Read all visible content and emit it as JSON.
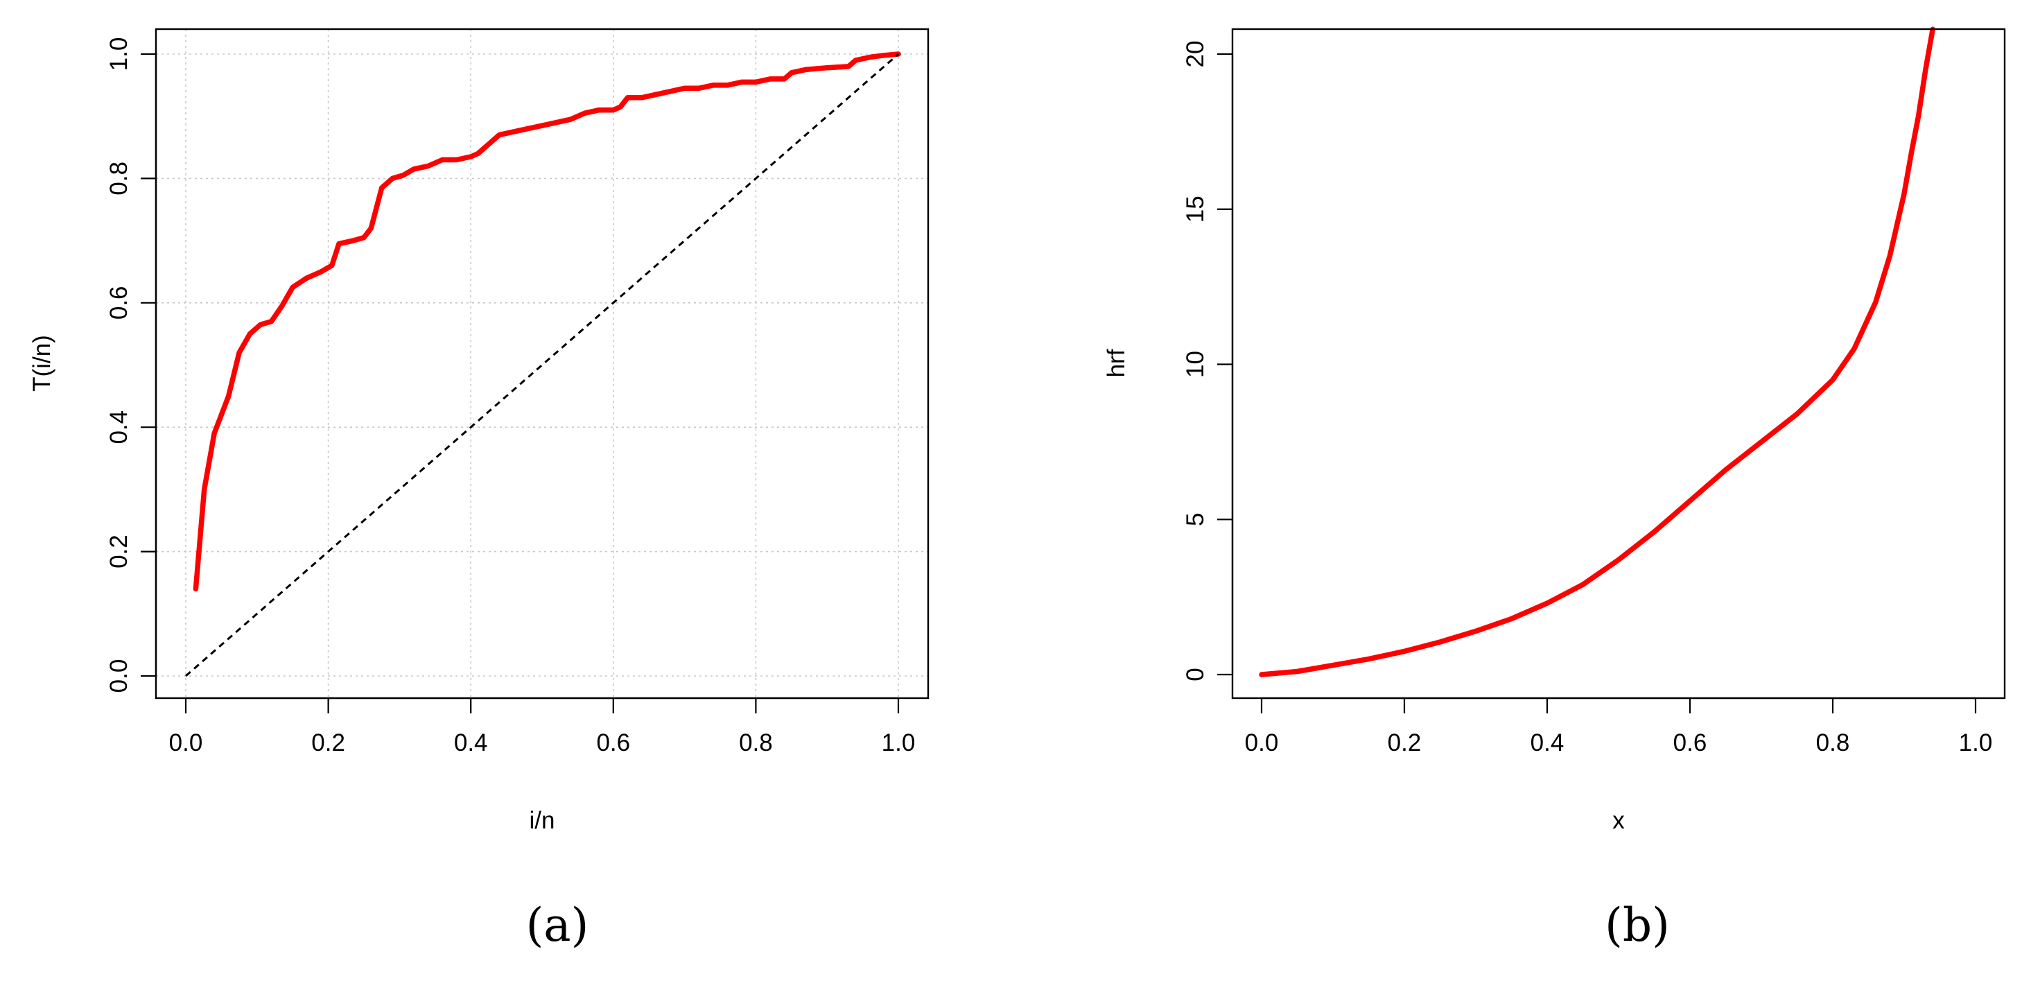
{
  "colors": {
    "curve": "#ff0000",
    "reference_line": "#000000",
    "grid": "#c8c8c8"
  },
  "panels": [
    {
      "label": "(a)"
    },
    {
      "label": "(b)"
    }
  ],
  "chart_data": [
    {
      "type": "line",
      "xlabel": "i/n",
      "ylabel": "T(i/n)",
      "xlim": [
        0,
        1
      ],
      "ylim": [
        0,
        1
      ],
      "x_ticks": [
        "0.0",
        "0.2",
        "0.4",
        "0.6",
        "0.8",
        "1.0"
      ],
      "y_ticks": [
        "0.0",
        "0.2",
        "0.4",
        "0.6",
        "0.8",
        "1.0"
      ],
      "grid": true,
      "series": [
        {
          "style": "solid-red",
          "x": [
            0.014,
            0.026,
            0.04,
            0.06,
            0.075,
            0.09,
            0.105,
            0.12,
            0.135,
            0.15,
            0.17,
            0.19,
            0.205,
            0.215,
            0.235,
            0.25,
            0.26,
            0.275,
            0.29,
            0.305,
            0.32,
            0.34,
            0.36,
            0.38,
            0.4,
            0.41,
            0.43,
            0.44,
            0.46,
            0.48,
            0.5,
            0.52,
            0.54,
            0.55,
            0.56,
            0.58,
            0.6,
            0.61,
            0.62,
            0.64,
            0.66,
            0.68,
            0.7,
            0.72,
            0.74,
            0.76,
            0.78,
            0.8,
            0.82,
            0.84,
            0.85,
            0.87,
            0.9,
            0.93,
            0.94,
            0.96,
            0.98,
            1.0
          ],
          "y": [
            0.14,
            0.3,
            0.39,
            0.45,
            0.52,
            0.55,
            0.565,
            0.57,
            0.595,
            0.625,
            0.64,
            0.65,
            0.66,
            0.695,
            0.7,
            0.705,
            0.72,
            0.785,
            0.8,
            0.805,
            0.815,
            0.82,
            0.83,
            0.83,
            0.835,
            0.84,
            0.86,
            0.87,
            0.875,
            0.88,
            0.885,
            0.89,
            0.895,
            0.9,
            0.905,
            0.91,
            0.91,
            0.915,
            0.93,
            0.93,
            0.935,
            0.94,
            0.945,
            0.945,
            0.95,
            0.95,
            0.955,
            0.955,
            0.96,
            0.96,
            0.97,
            0.975,
            0.978,
            0.98,
            0.99,
            0.995,
            0.998,
            1.0
          ]
        },
        {
          "style": "dashed-black",
          "x": [
            0,
            1
          ],
          "y": [
            0,
            1
          ]
        }
      ]
    },
    {
      "type": "line",
      "xlabel": "x",
      "ylabel": "hrf",
      "xlim": [
        0,
        1
      ],
      "ylim": [
        0,
        20
      ],
      "x_ticks": [
        "0.0",
        "0.2",
        "0.4",
        "0.6",
        "0.8",
        "1.0"
      ],
      "y_ticks": [
        "0",
        "5",
        "10",
        "15",
        "20"
      ],
      "grid": false,
      "series": [
        {
          "style": "solid-red",
          "x": [
            0.0,
            0.05,
            0.1,
            0.15,
            0.2,
            0.25,
            0.3,
            0.35,
            0.4,
            0.45,
            0.5,
            0.55,
            0.6,
            0.65,
            0.7,
            0.75,
            0.8,
            0.83,
            0.86,
            0.88,
            0.9,
            0.91,
            0.92,
            0.93,
            0.94
          ],
          "y": [
            0.0,
            0.1,
            0.3,
            0.5,
            0.75,
            1.05,
            1.4,
            1.8,
            2.3,
            2.9,
            3.7,
            4.6,
            5.6,
            6.6,
            7.5,
            8.4,
            9.5,
            10.5,
            12.0,
            13.5,
            15.5,
            16.8,
            18.0,
            19.5,
            20.8
          ]
        }
      ]
    }
  ]
}
